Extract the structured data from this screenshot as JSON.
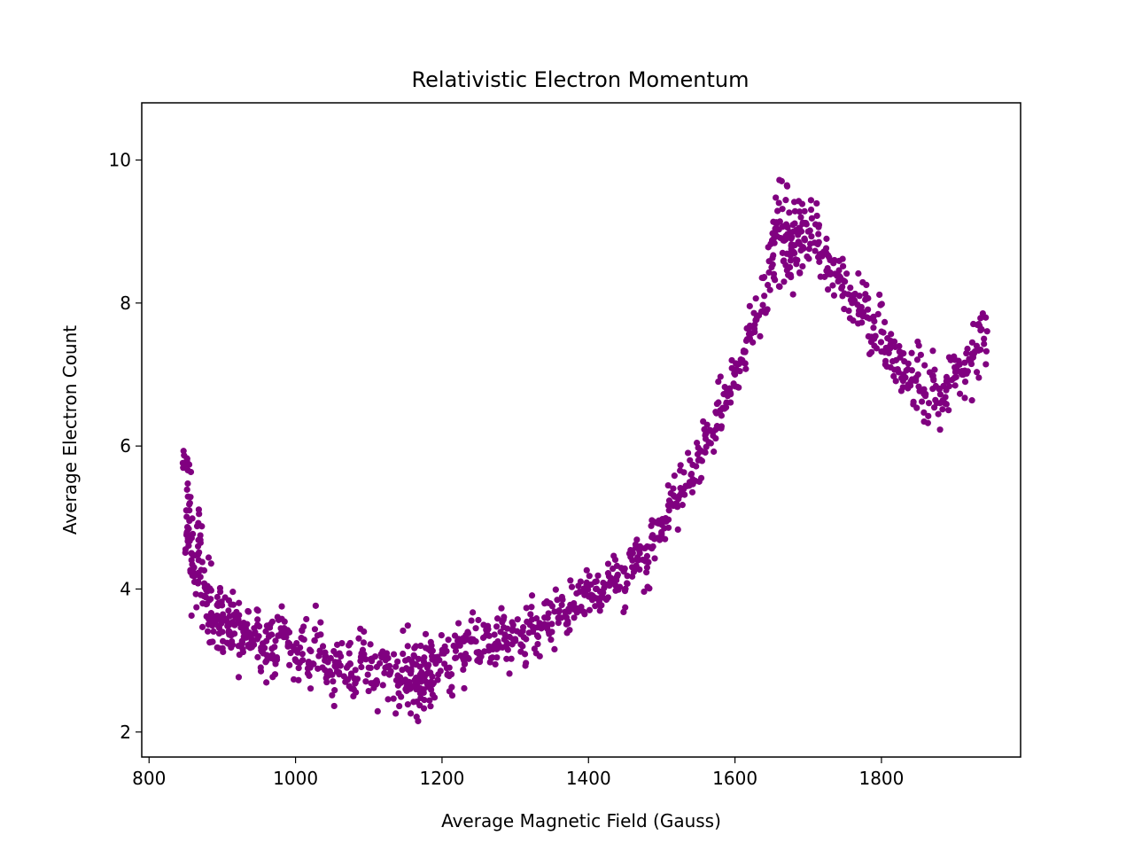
{
  "chart_data": {
    "type": "scatter",
    "title": "Relativistic Electron Momentum",
    "xlabel": "Average Magnetic Field (Gauss)",
    "ylabel": "Average Electron Count",
    "xlim": [
      790,
      1990
    ],
    "ylim": [
      1.65,
      10.8
    ],
    "xticks": [
      800,
      1000,
      1200,
      1400,
      1600,
      1800
    ],
    "yticks": [
      2,
      4,
      6,
      8,
      10
    ],
    "grid": false,
    "legend": "none",
    "marker_color": "#800080",
    "series": [
      {
        "x": [
          850,
          852,
          855,
          858,
          862,
          866,
          870,
          875,
          880,
          885,
          890,
          895,
          900,
          906,
          912,
          918,
          925,
          932,
          940,
          948,
          956,
          964,
          972,
          980,
          990,
          1000,
          1010,
          1020,
          1030,
          1040,
          1050,
          1060,
          1070,
          1080,
          1090,
          1100,
          1110,
          1120,
          1130,
          1140,
          1150,
          1155,
          1160,
          1165,
          1170,
          1175,
          1180,
          1185,
          1190,
          1200,
          1210,
          1220,
          1230,
          1240,
          1250,
          1260,
          1270,
          1280,
          1290,
          1300,
          1310,
          1320,
          1330,
          1340,
          1350,
          1360,
          1370,
          1380,
          1390,
          1400,
          1410,
          1420,
          1430,
          1440,
          1450,
          1460,
          1470,
          1480,
          1490,
          1500,
          1510,
          1520,
          1530,
          1540,
          1550,
          1560,
          1570,
          1580,
          1590,
          1600,
          1610,
          1620,
          1630,
          1640,
          1650,
          1655,
          1660,
          1665,
          1670,
          1675,
          1680,
          1685,
          1690,
          1695,
          1700,
          1710,
          1720,
          1730,
          1740,
          1750,
          1760,
          1770,
          1780,
          1790,
          1800,
          1810,
          1820,
          1830,
          1840,
          1850,
          1860,
          1870,
          1880,
          1890,
          1900,
          1910,
          1920,
          1930,
          1940
        ],
        "y": [
          5.75,
          4.8,
          5.1,
          4.5,
          4.1,
          4.2,
          4.75,
          3.9,
          4.0,
          3.6,
          3.55,
          3.8,
          3.4,
          3.55,
          3.35,
          3.6,
          3.2,
          3.45,
          3.3,
          3.5,
          3.1,
          3.35,
          3.0,
          3.45,
          3.25,
          3.0,
          3.3,
          2.9,
          3.35,
          3.0,
          2.8,
          3.1,
          2.9,
          2.75,
          3.1,
          2.9,
          2.7,
          3.05,
          2.85,
          2.65,
          3.0,
          2.7,
          2.95,
          2.6,
          2.8,
          2.55,
          2.9,
          2.7,
          3.0,
          3.1,
          2.9,
          3.2,
          3.0,
          3.3,
          3.1,
          3.35,
          3.2,
          3.4,
          3.15,
          3.3,
          3.2,
          3.5,
          3.35,
          3.6,
          3.4,
          3.7,
          3.6,
          3.8,
          3.75,
          3.9,
          4.0,
          3.95,
          4.1,
          4.2,
          4.0,
          4.4,
          4.5,
          4.3,
          4.7,
          4.9,
          5.1,
          5.2,
          5.4,
          5.6,
          5.8,
          6.1,
          6.2,
          6.5,
          6.7,
          7.0,
          7.2,
          7.5,
          7.8,
          8.1,
          8.5,
          9.0,
          9.4,
          8.7,
          9.1,
          8.5,
          9.0,
          8.6,
          9.2,
          8.9,
          9.0,
          9.1,
          8.7,
          8.6,
          8.4,
          8.3,
          8.0,
          8.1,
          7.8,
          7.5,
          7.6,
          7.3,
          7.2,
          7.0,
          6.9,
          7.0,
          6.7,
          6.8,
          6.6,
          6.9,
          7.1,
          7.0,
          7.2,
          7.4,
          7.5
        ],
        "spread": [
          0.15,
          0.35,
          0.4,
          0.4,
          0.35,
          0.35,
          0.3,
          0.35,
          0.35,
          0.3,
          0.3,
          0.35,
          0.3,
          0.3,
          0.3,
          0.3,
          0.3,
          0.3,
          0.3,
          0.3,
          0.3,
          0.3,
          0.3,
          0.3,
          0.3,
          0.3,
          0.3,
          0.3,
          0.3,
          0.3,
          0.3,
          0.3,
          0.3,
          0.3,
          0.3,
          0.3,
          0.3,
          0.3,
          0.3,
          0.3,
          0.35,
          0.35,
          0.35,
          0.35,
          0.35,
          0.35,
          0.35,
          0.35,
          0.35,
          0.3,
          0.3,
          0.3,
          0.3,
          0.3,
          0.3,
          0.3,
          0.3,
          0.3,
          0.3,
          0.3,
          0.3,
          0.3,
          0.3,
          0.3,
          0.3,
          0.3,
          0.3,
          0.3,
          0.3,
          0.3,
          0.3,
          0.3,
          0.3,
          0.3,
          0.3,
          0.3,
          0.3,
          0.3,
          0.3,
          0.3,
          0.3,
          0.3,
          0.3,
          0.3,
          0.3,
          0.3,
          0.3,
          0.3,
          0.3,
          0.3,
          0.3,
          0.3,
          0.3,
          0.3,
          0.35,
          0.4,
          0.4,
          0.4,
          0.4,
          0.4,
          0.4,
          0.4,
          0.4,
          0.4,
          0.4,
          0.4,
          0.4,
          0.4,
          0.4,
          0.4,
          0.4,
          0.4,
          0.4,
          0.4,
          0.4,
          0.4,
          0.4,
          0.4,
          0.4,
          0.4,
          0.4,
          0.4,
          0.4,
          0.4,
          0.4,
          0.4,
          0.4,
          0.4,
          0.4,
          0.4
        ]
      }
    ]
  }
}
